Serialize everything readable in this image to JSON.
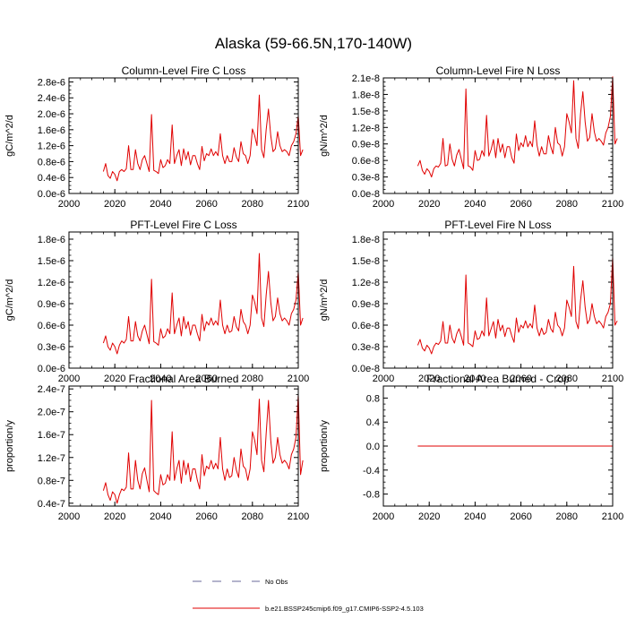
{
  "figure": {
    "title": "Alaska (59-66.5N,170-140W)"
  },
  "legend": {
    "items": [
      {
        "label": "No Obs",
        "style": "dashed",
        "color": "#6a6a9a"
      },
      {
        "label": "b.e21.BSSP245cmip6.f09_g17.CMIP6-SSP2-4.5.103",
        "style": "solid",
        "color": "#e00000"
      }
    ]
  },
  "chart_data": [
    {
      "type": "line",
      "title": "Column-Level Fire C Loss",
      "ylabel": "gC/m^2/d",
      "xlim": [
        2000,
        2100
      ],
      "ylim": [
        0.0,
        2.9
      ],
      "xticks": [
        2000,
        2020,
        2040,
        2060,
        2080,
        2100
      ],
      "xtick_labels": [
        "2000",
        "2020",
        "2040",
        "2060",
        "2080",
        "2100"
      ],
      "yticks": [
        0.0,
        0.4,
        0.8,
        1.2,
        1.6,
        2.0,
        2.4,
        2.8
      ],
      "ytick_labels": [
        "0.0e-6",
        "0.4e-6",
        "0.8e-6",
        "1.2e-6",
        "1.6e-6",
        "2.0e-6",
        "2.4e-6",
        "2.8e-6"
      ],
      "series": [
        {
          "name": "b.e21.BSSP245cmip6.f09_g17.CMIP6-SSP2-4.5.103",
          "color": "#e00000",
          "x_start": 2015,
          "values": [
            0.55,
            0.75,
            0.45,
            0.38,
            0.55,
            0.48,
            0.32,
            0.55,
            0.6,
            0.55,
            0.62,
            1.2,
            0.6,
            0.6,
            1.1,
            0.75,
            0.6,
            0.85,
            0.95,
            0.75,
            0.55,
            1.98,
            0.58,
            0.55,
            0.5,
            0.85,
            0.65,
            0.7,
            0.85,
            0.75,
            1.72,
            0.75,
            0.95,
            1.1,
            0.7,
            1.12,
            0.85,
            1.05,
            0.72,
            0.95,
            0.95,
            0.75,
            0.6,
            1.18,
            0.82,
            1.0,
            0.95,
            1.12,
            0.95,
            1.05,
            0.95,
            1.5,
            0.95,
            0.75,
            0.95,
            0.8,
            0.8,
            1.15,
            0.92,
            0.8,
            1.3,
            1.0,
            0.95,
            0.75,
            0.95,
            1.62,
            1.45,
            1.2,
            2.47,
            1.1,
            0.9,
            1.6,
            2.12,
            1.45,
            1.05,
            1.12,
            1.55,
            1.2,
            1.05,
            1.1,
            1.05,
            0.95,
            1.2,
            1.3,
            1.5,
            1.95,
            0.95,
            1.1
          ]
        }
      ]
    },
    {
      "type": "line",
      "title": "Column-Level Fire N Loss",
      "ylabel": "gN/m^2/d",
      "xlim": [
        2000,
        2100
      ],
      "ylim": [
        0.0,
        2.1
      ],
      "xticks": [
        2000,
        2020,
        2040,
        2060,
        2080,
        2100
      ],
      "xtick_labels": [
        "2000",
        "2020",
        "2040",
        "2060",
        "2080",
        "2100"
      ],
      "yticks": [
        0.0,
        0.3,
        0.6,
        0.9,
        1.2,
        1.5,
        1.8,
        2.1
      ],
      "ytick_labels": [
        "0.0e-8",
        "0.3e-8",
        "0.6e-8",
        "0.9e-8",
        "1.2e-8",
        "1.5e-8",
        "1.8e-8",
        "2.1e-8"
      ],
      "series": [
        {
          "name": "b.e21.BSSP245cmip6.f09_g17.CMIP6-SSP2-4.5.103",
          "color": "#e00000",
          "x_start": 2015,
          "values": [
            0.5,
            0.6,
            0.42,
            0.35,
            0.45,
            0.4,
            0.3,
            0.45,
            0.5,
            0.48,
            0.55,
            1.0,
            0.5,
            0.52,
            0.9,
            0.62,
            0.5,
            0.7,
            0.8,
            0.62,
            0.45,
            1.9,
            0.5,
            0.48,
            0.42,
            0.78,
            0.6,
            0.62,
            0.78,
            0.68,
            1.42,
            0.68,
            0.8,
            0.98,
            0.65,
            1.0,
            0.75,
            0.9,
            0.65,
            0.85,
            0.85,
            0.65,
            0.55,
            1.08,
            0.78,
            0.92,
            0.85,
            1.05,
            0.85,
            0.95,
            0.85,
            1.32,
            0.88,
            0.68,
            0.85,
            0.72,
            0.72,
            1.05,
            0.85,
            0.72,
            1.2,
            0.92,
            0.88,
            0.68,
            0.85,
            1.45,
            1.3,
            1.1,
            2.05,
            1.0,
            0.82,
            1.45,
            1.85,
            1.3,
            0.95,
            1.02,
            1.45,
            1.12,
            0.95,
            1.0,
            0.95,
            0.88,
            1.1,
            1.2,
            1.4,
            2.12,
            0.9,
            1.0
          ]
        }
      ]
    },
    {
      "type": "line",
      "title": "PFT-Level Fire C Loss",
      "ylabel": "gC/m^2/d",
      "xlim": [
        2000,
        2100
      ],
      "ylim": [
        0.0,
        1.9
      ],
      "xticks": [
        2000,
        2020,
        2040,
        2060,
        2080,
        2100
      ],
      "xtick_labels": [
        "2000",
        "2020",
        "2040",
        "2060",
        "2080",
        "2100"
      ],
      "yticks": [
        0.0,
        0.3,
        0.6,
        0.9,
        1.2,
        1.5,
        1.8
      ],
      "ytick_labels": [
        "0.0e-6",
        "0.3e-6",
        "0.6e-6",
        "0.9e-6",
        "1.2e-6",
        "1.5e-6",
        "1.8e-6"
      ],
      "series": [
        {
          "name": "b.e21.BSSP245cmip6.f09_g17.CMIP6-SSP2-4.5.103",
          "color": "#e00000",
          "x_start": 2015,
          "values": [
            0.35,
            0.45,
            0.3,
            0.25,
            0.35,
            0.3,
            0.2,
            0.32,
            0.38,
            0.35,
            0.4,
            0.72,
            0.38,
            0.38,
            0.65,
            0.45,
            0.38,
            0.52,
            0.6,
            0.47,
            0.34,
            1.24,
            0.37,
            0.35,
            0.32,
            0.55,
            0.42,
            0.45,
            0.55,
            0.48,
            1.05,
            0.48,
            0.6,
            0.7,
            0.45,
            0.72,
            0.55,
            0.65,
            0.46,
            0.6,
            0.6,
            0.48,
            0.38,
            0.75,
            0.52,
            0.65,
            0.6,
            0.7,
            0.6,
            0.66,
            0.6,
            0.95,
            0.6,
            0.48,
            0.6,
            0.5,
            0.52,
            0.72,
            0.58,
            0.52,
            0.82,
            0.65,
            0.6,
            0.48,
            0.6,
            1.02,
            0.92,
            0.76,
            1.6,
            0.7,
            0.58,
            1.02,
            1.35,
            0.92,
            0.66,
            0.72,
            0.98,
            0.76,
            0.66,
            0.7,
            0.66,
            0.6,
            0.76,
            0.82,
            0.95,
            1.35,
            0.6,
            0.7
          ]
        }
      ]
    },
    {
      "type": "line",
      "title": "PFT-Level Fire N Loss",
      "ylabel": "gN/m^2/d",
      "xlim": [
        2000,
        2100
      ],
      "ylim": [
        0.0,
        1.9
      ],
      "xticks": [
        2000,
        2020,
        2040,
        2060,
        2080,
        2100
      ],
      "xtick_labels": [
        "2000",
        "2020",
        "2040",
        "2060",
        "2080",
        "2100"
      ],
      "yticks": [
        0.0,
        0.3,
        0.6,
        0.9,
        1.2,
        1.5,
        1.8
      ],
      "ytick_labels": [
        "0.0e-8",
        "0.3e-8",
        "0.6e-8",
        "0.9e-8",
        "1.2e-8",
        "1.5e-8",
        "1.8e-8"
      ],
      "series": [
        {
          "name": "b.e21.BSSP245cmip6.f09_g17.CMIP6-SSP2-4.5.103",
          "color": "#e00000",
          "x_start": 2015,
          "values": [
            0.32,
            0.4,
            0.28,
            0.24,
            0.32,
            0.28,
            0.2,
            0.3,
            0.35,
            0.33,
            0.38,
            0.65,
            0.35,
            0.35,
            0.6,
            0.42,
            0.35,
            0.48,
            0.55,
            0.44,
            0.32,
            1.3,
            0.35,
            0.33,
            0.3,
            0.52,
            0.4,
            0.42,
            0.52,
            0.45,
            0.98,
            0.45,
            0.55,
            0.65,
            0.42,
            0.68,
            0.52,
            0.6,
            0.44,
            0.56,
            0.56,
            0.45,
            0.36,
            0.7,
            0.5,
            0.6,
            0.56,
            0.66,
            0.56,
            0.62,
            0.56,
            0.88,
            0.56,
            0.45,
            0.56,
            0.47,
            0.5,
            0.68,
            0.55,
            0.5,
            0.78,
            0.6,
            0.56,
            0.45,
            0.56,
            0.95,
            0.85,
            0.72,
            1.42,
            0.65,
            0.55,
            0.95,
            1.22,
            0.85,
            0.62,
            0.68,
            0.9,
            0.72,
            0.62,
            0.66,
            0.62,
            0.56,
            0.72,
            0.78,
            0.9,
            1.55,
            0.6,
            0.66
          ]
        }
      ]
    },
    {
      "type": "line",
      "title": "Fractional Area Burned",
      "ylabel": "proportion/y",
      "xlim": [
        2000,
        2100
      ],
      "ylim": [
        0.35,
        2.45
      ],
      "xticks": [
        2000,
        2020,
        2040,
        2060,
        2080,
        2100
      ],
      "xtick_labels": [
        "2000",
        "2020",
        "2040",
        "2060",
        "2080",
        "2100"
      ],
      "yticks": [
        0.4,
        0.8,
        1.2,
        1.6,
        2.0,
        2.4
      ],
      "ytick_labels": [
        "0.4e-7",
        "0.8e-7",
        "1.2e-7",
        "1.6e-7",
        "2.0e-7",
        "2.4e-7"
      ],
      "series": [
        {
          "name": "b.e21.BSSP245cmip6.f09_g17.CMIP6-SSP2-4.5.103",
          "color": "#e00000",
          "x_start": 2015,
          "values": [
            0.62,
            0.76,
            0.55,
            0.45,
            0.6,
            0.55,
            0.4,
            0.55,
            0.65,
            0.62,
            0.68,
            1.28,
            0.65,
            0.65,
            1.15,
            0.8,
            0.65,
            0.92,
            1.02,
            0.8,
            0.6,
            2.2,
            0.62,
            0.58,
            0.55,
            0.9,
            0.72,
            0.75,
            0.9,
            0.8,
            1.65,
            0.8,
            1.0,
            1.15,
            0.75,
            1.15,
            0.9,
            1.1,
            0.78,
            1.0,
            1.0,
            0.8,
            0.65,
            1.25,
            0.88,
            1.05,
            1.0,
            1.15,
            1.0,
            1.1,
            1.0,
            1.55,
            1.0,
            0.8,
            1.0,
            0.85,
            0.88,
            1.2,
            0.98,
            0.85,
            1.35,
            1.05,
            1.0,
            0.8,
            1.0,
            1.65,
            1.5,
            1.25,
            2.22,
            1.15,
            0.95,
            1.62,
            2.2,
            1.5,
            1.1,
            1.2,
            1.55,
            1.25,
            1.1,
            1.15,
            1.1,
            1.0,
            1.25,
            1.35,
            1.55,
            2.3,
            0.9,
            1.15
          ]
        }
      ]
    },
    {
      "type": "line",
      "title": "Fractional Area Burned - Crop",
      "ylabel": "proportion/y",
      "xlim": [
        2000,
        2100
      ],
      "ylim": [
        -1.0,
        1.0
      ],
      "xticks": [
        2000,
        2020,
        2040,
        2060,
        2080,
        2100
      ],
      "xtick_labels": [
        "2000",
        "2020",
        "2040",
        "2060",
        "2080",
        "2100"
      ],
      "yticks": [
        -0.8,
        -0.4,
        0.0,
        0.4,
        0.8
      ],
      "ytick_labels": [
        "-0.8",
        "-0.4",
        "0.0",
        "0.4",
        "0.8"
      ],
      "series": [
        {
          "name": "b.e21.BSSP245cmip6.f09_g17.CMIP6-SSP2-4.5.103",
          "color": "#e00000",
          "x_start": 2015,
          "values": [
            0.0,
            0.0
          ]
        }
      ],
      "x_end": 2100
    }
  ]
}
